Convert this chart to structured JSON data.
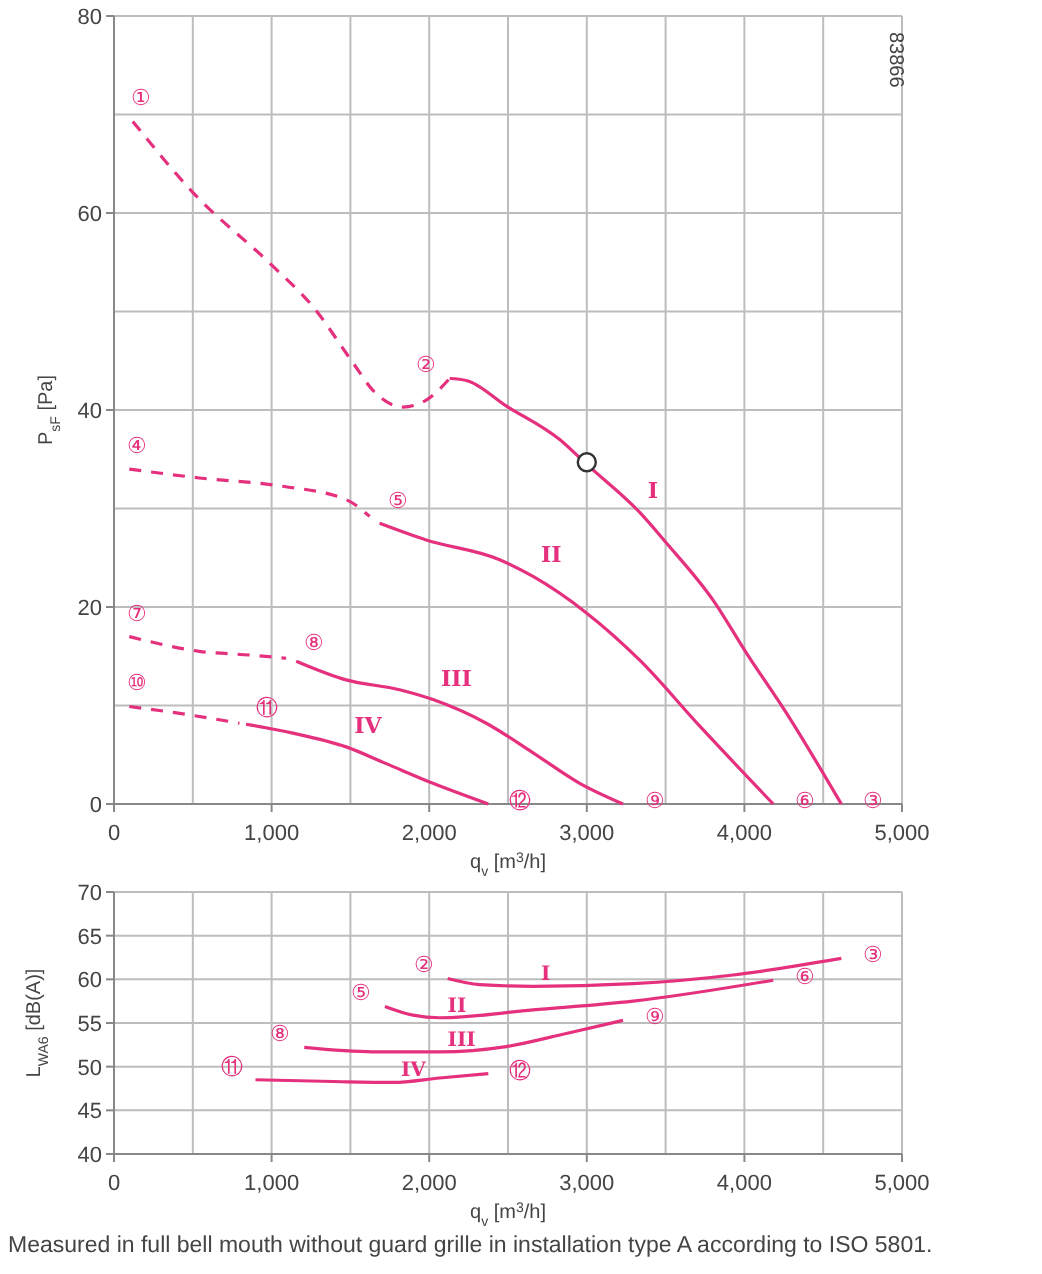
{
  "chart_data": [
    {
      "type": "line",
      "xlabel": "q$_{v}$ [m$^{3}$/h]",
      "ylabel": "P$_{sF}$ [Pa]",
      "xlim": [
        0,
        5000
      ],
      "ylim": [
        0,
        80
      ],
      "xticks": [
        0,
        {
          "value": 500,
          "label": null
        },
        {
          "value": 1000,
          "label": "1,000"
        },
        {
          "value": 1500,
          "label": null
        },
        {
          "value": 2000,
          "label": "2,000"
        },
        {
          "value": 2500,
          "label": null
        },
        {
          "value": 3000,
          "label": "3,000"
        },
        {
          "value": 3500,
          "label": null
        },
        {
          "value": 4000,
          "label": "4,000"
        },
        {
          "value": 4500,
          "label": null
        },
        {
          "value": 5000,
          "label": "5,000"
        }
      ],
      "yticks": [
        0,
        {
          "value": 10,
          "label": null
        },
        20,
        {
          "value": 30,
          "label": null
        },
        40,
        {
          "value": 50,
          "label": null
        },
        60,
        {
          "value": 70,
          "label": null
        },
        80
      ],
      "grid": true,
      "legend": false,
      "marker": "none",
      "series": [
        {
          "color": "#e5307e",
          "line_style": "dashed",
          "x": [
            119,
            500,
            1008,
            1262,
            1516,
            1643,
            1833,
            1981,
            2130
          ],
          "values": [
            69.3,
            62.1,
            54.6,
            50.5,
            44.8,
            42,
            40.3,
            41,
            43.2
          ]
        },
        {
          "name": "I",
          "color": "#e5307e",
          "line_style": "solid",
          "x": [
            2130,
            2236,
            2490,
            2828,
            2998,
            3336,
            3505,
            3801,
            4014,
            4268,
            4615
          ],
          "values": [
            43.2,
            43,
            40.4,
            37,
            34.5,
            29.6,
            26.5,
            20.7,
            15.3,
            9.2,
            0
          ]
        },
        {
          "color": "#e5307e",
          "line_style": "dashed",
          "x": [
            97,
            542,
            1050,
            1473,
            1622
          ],
          "values": [
            34,
            33.1,
            32.3,
            30.9,
            29.2
          ]
        },
        {
          "name": "II",
          "color": "#e5307e",
          "line_style": "solid",
          "x": [
            1685,
            1981,
            2447,
            2659,
            2998,
            3336,
            3717,
            4183
          ],
          "values": [
            28.5,
            26.8,
            24.8,
            23.1,
            19.4,
            14.6,
            7.9,
            0
          ]
        },
        {
          "color": "#e5307e",
          "line_style": "dashed",
          "x": [
            97,
            542,
            880,
            1092
          ],
          "values": [
            17,
            15.5,
            15.1,
            14.8
          ]
        },
        {
          "name": "III",
          "color": "#e5307e",
          "line_style": "solid",
          "x": [
            1156,
            1473,
            1812,
            2024,
            2362,
            2659,
            2955,
            3230
          ],
          "values": [
            14.5,
            12.6,
            11.6,
            10.6,
            8.2,
            5.2,
            2.1,
            0
          ]
        },
        {
          "color": "#e5307e",
          "line_style": "dashed",
          "x": [
            97,
            457,
            796
          ],
          "values": [
            9.9,
            9.1,
            8.2
          ]
        },
        {
          "name": "IV",
          "color": "#e5307e",
          "line_style": "solid",
          "x": [
            838,
            1135,
            1473,
            1727,
            2024,
            2375
          ],
          "values": [
            8.1,
            7.2,
            5.8,
            4.1,
            2.1,
            0
          ]
        },
        {
          "type": "scatter",
          "color": "#333333",
          "marker": "circle",
          "x": [
            3000
          ],
          "values": [
            34.7
          ]
        }
      ],
      "annotations": [
        "83866",
        {
          "text": "①",
          "x": 119,
          "y": 69.3
        },
        {
          "text": "②",
          "x": 2130,
          "y": 43.2
        },
        {
          "text": "③",
          "x": 4615,
          "y": 0
        },
        {
          "text": "④",
          "x": 97,
          "y": 34
        },
        {
          "text": "⑤",
          "x": 1622,
          "y": 29.2
        },
        {
          "text": "⑥",
          "x": 4183,
          "y": 0
        },
        {
          "text": "⑦",
          "x": 97,
          "y": 17
        },
        {
          "text": "⑧",
          "x": 1092,
          "y": 14.8
        },
        {
          "text": "⑨",
          "x": 3230,
          "y": 0
        },
        {
          "text": "⑩",
          "x": 97,
          "y": 9.9
        },
        {
          "text": "⑪",
          "x": 796,
          "y": 8.2
        },
        {
          "text": "⑫",
          "x": 2375,
          "y": 0
        }
      ]
    },
    {
      "type": "line",
      "xlabel": "q$_{v}$ [m$^{3}$/h]",
      "ylabel": "L$_{WA6}$ [dB(A)]",
      "xlim": [
        0,
        5000
      ],
      "ylim": [
        40,
        70
      ],
      "xticks": [
        0,
        {
          "value": 500,
          "label": null
        },
        {
          "value": 1000,
          "label": "1,000"
        },
        {
          "value": 1500,
          "label": null
        },
        {
          "value": 2000,
          "label": "2,000"
        },
        {
          "value": 2500,
          "label": null
        },
        {
          "value": 3000,
          "label": "3,000"
        },
        {
          "value": 3500,
          "label": null
        },
        {
          "value": 4000,
          "label": "4,000"
        },
        {
          "value": 4500,
          "label": null
        },
        {
          "value": 5000,
          "label": "5,000"
        }
      ],
      "yticks": [
        40,
        45,
        50,
        55,
        60,
        65,
        70
      ],
      "grid": true,
      "legend": false,
      "marker": "none",
      "line_style": "solid",
      "series": [
        {
          "name": "I",
          "color": "#e5307e",
          "x": [
            2117,
            2320,
            2659,
            3294,
            3929,
            4615
          ],
          "values": [
            60.1,
            59.4,
            59.2,
            59.5,
            60.5,
            62.4
          ]
        },
        {
          "name": "II",
          "color": "#e5307e",
          "x": [
            1719,
            1897,
            2066,
            2659,
            3294,
            4183
          ],
          "values": [
            56.9,
            55.9,
            55.6,
            56.5,
            57.5,
            59.9
          ]
        },
        {
          "name": "III",
          "color": "#e5307e",
          "x": [
            1207,
            1643,
            2066,
            2489,
            2870,
            3230
          ],
          "values": [
            52.2,
            51.7,
            51.7,
            52.3,
            53.8,
            55.3
          ]
        },
        {
          "name": "IV",
          "color": "#e5307e",
          "x": [
            898,
            1389,
            1770,
            2066,
            2375
          ],
          "values": [
            48.5,
            48.3,
            48.2,
            48.7,
            49.2
          ]
        }
      ],
      "annotations": [
        "Measured in full bell mouth without guard grille in installation type A according to ISO 5801.",
        {
          "text": "②",
          "x": 2117,
          "y": 60.1
        },
        {
          "text": "③",
          "x": 4615,
          "y": 62.4
        },
        {
          "text": "⑤",
          "x": 1719,
          "y": 56.9
        },
        {
          "text": "⑥",
          "x": 4183,
          "y": 59.9
        },
        {
          "text": "⑧",
          "x": 1207,
          "y": 52.2
        },
        {
          "text": "⑨",
          "x": 3230,
          "y": 55.3
        },
        {
          "text": "⑪",
          "x": 898,
          "y": 48.5
        },
        {
          "text": "⑫",
          "x": 2375,
          "y": 49.2
        }
      ]
    }
  ]
}
